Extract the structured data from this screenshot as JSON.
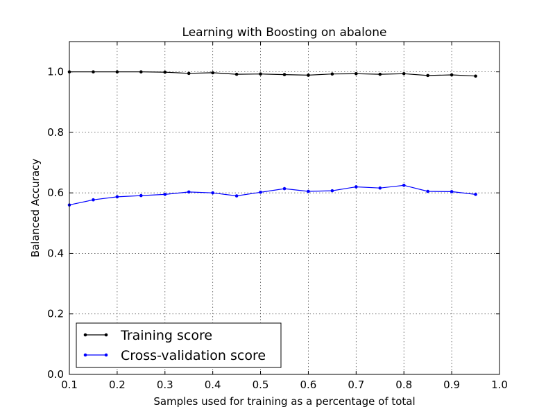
{
  "chart_data": {
    "type": "line",
    "title": "Learning with Boosting on abalone",
    "xlabel": "Samples used for training as a percentage of total",
    "ylabel": "Balanced Accuracy",
    "xlim": [
      0.1,
      1.0
    ],
    "ylim": [
      0.0,
      1.1
    ],
    "xticks": [
      "0.1",
      "0.2",
      "0.3",
      "0.4",
      "0.5",
      "0.6",
      "0.7",
      "0.8",
      "0.9",
      "1.0"
    ],
    "yticks": [
      "0.0",
      "0.2",
      "0.4",
      "0.6",
      "0.8",
      "1.0"
    ],
    "grid": true,
    "legend_position": "lower-left",
    "x": [
      0.1,
      0.15,
      0.2,
      0.25,
      0.3,
      0.35,
      0.4,
      0.45,
      0.5,
      0.55,
      0.6,
      0.65,
      0.7,
      0.75,
      0.8,
      0.85,
      0.9,
      0.95
    ],
    "series": [
      {
        "name": "Training score",
        "color": "#000000",
        "values": [
          1.0,
          1.0,
          1.0,
          1.0,
          0.999,
          0.995,
          0.997,
          0.992,
          0.993,
          0.991,
          0.989,
          0.993,
          0.994,
          0.992,
          0.994,
          0.988,
          0.99,
          0.986
        ]
      },
      {
        "name": "Cross-validation score",
        "color": "#0000ff",
        "values": [
          0.56,
          0.577,
          0.587,
          0.591,
          0.595,
          0.603,
          0.6,
          0.59,
          0.602,
          0.614,
          0.605,
          0.607,
          0.62,
          0.616,
          0.625,
          0.605,
          0.604,
          0.595
        ]
      }
    ]
  }
}
